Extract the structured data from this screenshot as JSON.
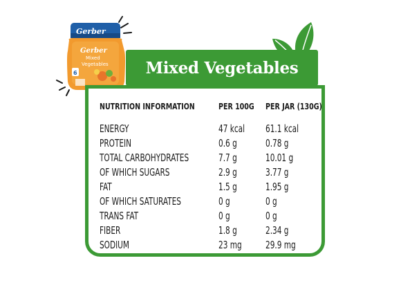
{
  "title": "Mixed Vegetables",
  "product": {
    "brand": "Gerber",
    "name_line1": "Mixed",
    "name_line2": "Vegetables",
    "stage": "6"
  },
  "nutrition": {
    "headers": [
      "NUTRITION INFORMATION",
      "PER 100G",
      "PER JAR (130G)"
    ],
    "rows": [
      [
        "ENERGY",
        "47 kcal",
        "61.1 kcal"
      ],
      [
        "PROTEIN",
        "0.6 g",
        "0.78 g"
      ],
      [
        "TOTAL CARBOHYDRATES",
        "7.7 g",
        "10.01 g"
      ],
      [
        "OF WHICH SUGARS",
        "2.9 g",
        "3.77 g"
      ],
      [
        "FAT",
        "1.5 g",
        "1.95 g"
      ],
      [
        "OF WHICH SATURATES",
        "0 g",
        "0 g"
      ],
      [
        "TRANS FAT",
        "0 g",
        "0 g"
      ],
      [
        "FIBER",
        "1.8 g",
        "2.34 g"
      ],
      [
        "SODIUM",
        "23 mg",
        "29.9 mg"
      ]
    ]
  },
  "colors": {
    "accent_green": "#3c9a35",
    "lid_blue": "#1f5fa8",
    "jar_orange": "#f29a2e"
  }
}
